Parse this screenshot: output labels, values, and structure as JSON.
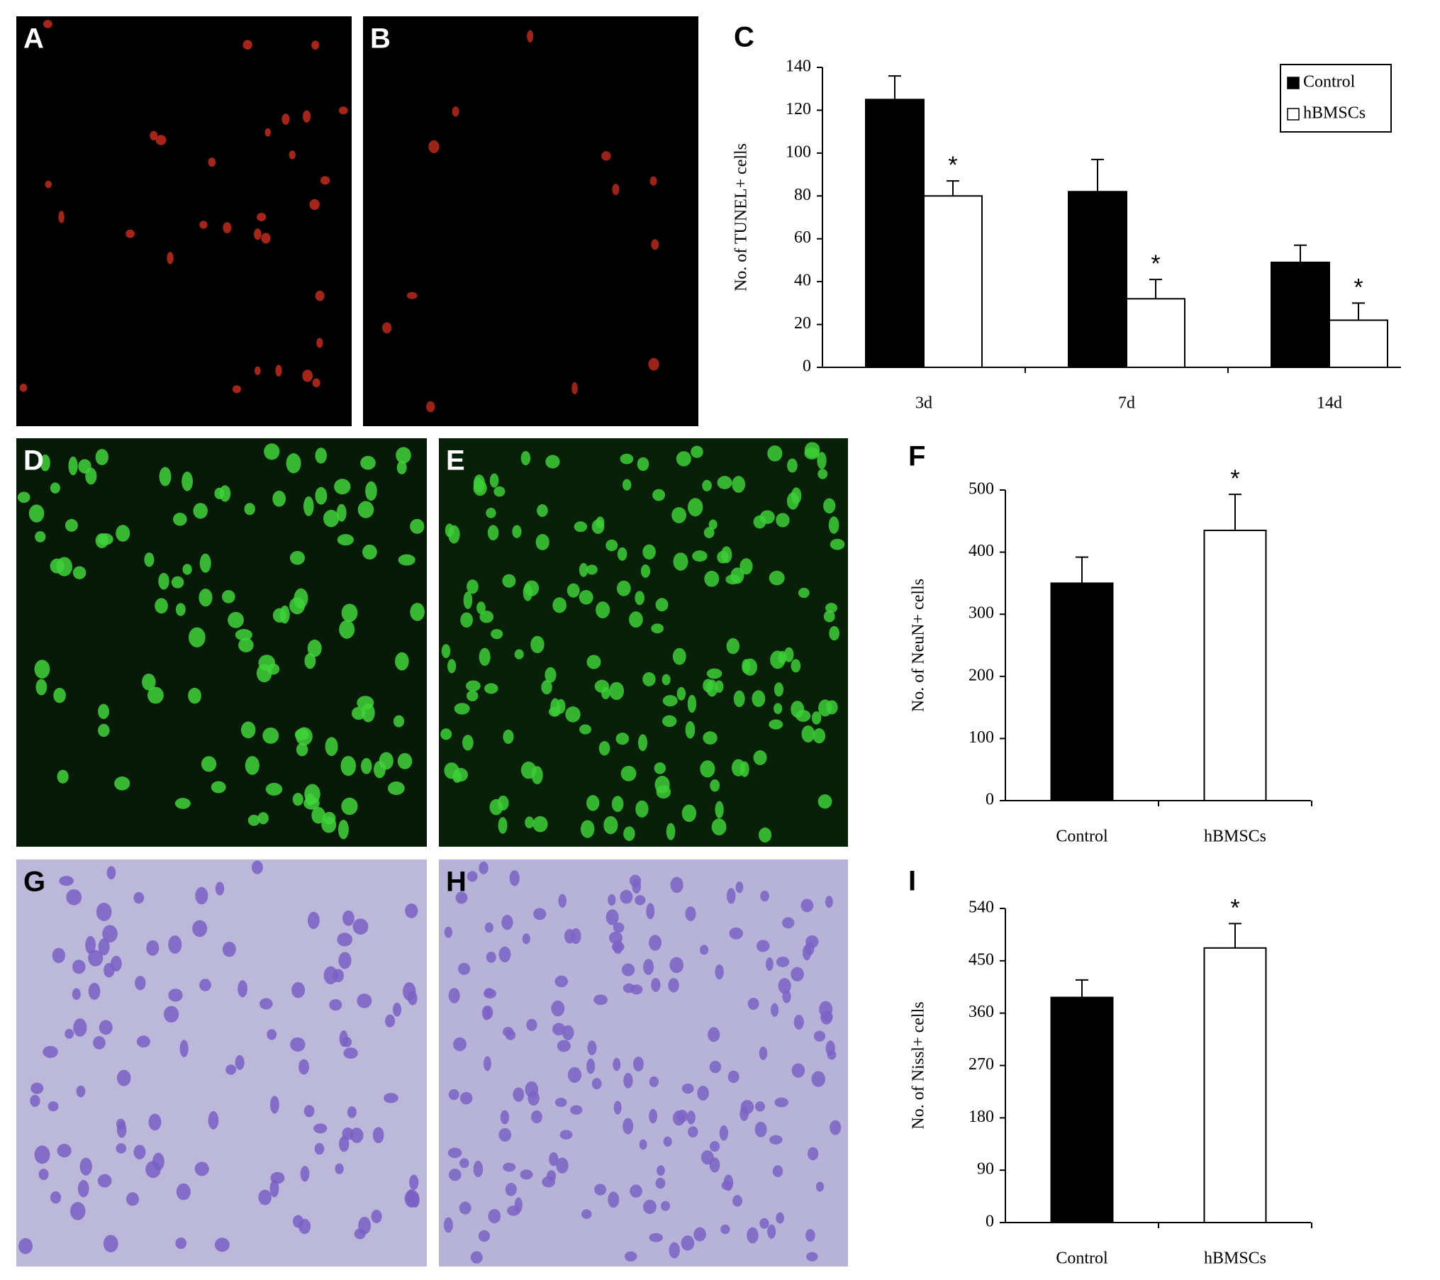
{
  "image_panels": [
    {
      "label": "A"
    },
    {
      "label": "B"
    },
    {
      "label": "D"
    },
    {
      "label": "E"
    },
    {
      "label": "G"
    },
    {
      "label": "H"
    }
  ],
  "chart_data": [
    {
      "type": "bar",
      "label": "C",
      "y_label": "No. of TUNEL+ cells",
      "categories": [
        "3d",
        "7d",
        "14d"
      ],
      "series": [
        {
          "name": "Control",
          "color": "#000000",
          "values": [
            125,
            82,
            49
          ],
          "errors": [
            11,
            15,
            8
          ],
          "significance": [
            null,
            null,
            null
          ]
        },
        {
          "name": "hBMSCs",
          "color": "#ffffff",
          "values": [
            80,
            32,
            22
          ],
          "errors": [
            7,
            9,
            8
          ],
          "significance": [
            "*",
            "*",
            "*"
          ]
        }
      ],
      "ylim": [
        0,
        140
      ],
      "yticks": [
        0,
        20,
        40,
        60,
        80,
        100,
        120,
        140
      ],
      "legend": "top-right"
    },
    {
      "type": "bar",
      "label": "F",
      "y_label": "No. of NeuN+ cells",
      "categories": [
        "Control",
        "hBMSCs"
      ],
      "values": [
        350,
        435
      ],
      "errors": [
        42,
        58
      ],
      "colors": [
        "#000000",
        "#ffffff"
      ],
      "significance": [
        null,
        "*"
      ],
      "ylim": [
        0,
        500
      ],
      "yticks": [
        0,
        100,
        200,
        300,
        400,
        500
      ]
    },
    {
      "type": "bar",
      "label": "I",
      "y_label": "No. of Nissl+ cells",
      "categories": [
        "Control",
        "hBMSCs"
      ],
      "values": [
        387,
        472
      ],
      "errors": [
        30,
        42
      ],
      "colors": [
        "#000000",
        "#ffffff"
      ],
      "significance": [
        null,
        "*"
      ],
      "ylim": [
        0,
        540
      ],
      "yticks": [
        0,
        90,
        180,
        270,
        360,
        450,
        540
      ]
    }
  ]
}
